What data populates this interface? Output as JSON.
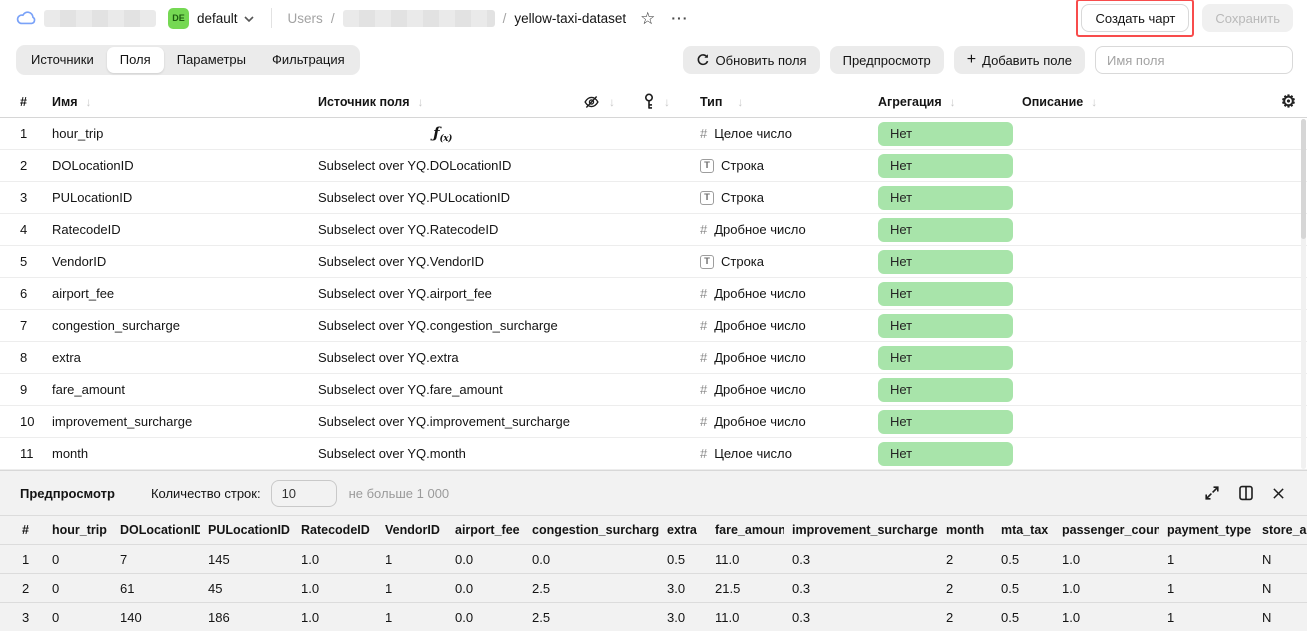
{
  "header": {
    "workspace": {
      "de_badge": "DE",
      "env_label": "default"
    },
    "breadcrumb": {
      "root": "Users",
      "sep1": "/",
      "sep2": "/",
      "dataset": "yellow-taxi-dataset"
    },
    "actions": {
      "create_chart": "Создать чарт",
      "save": "Сохранить"
    }
  },
  "toolbar": {
    "tabs": [
      {
        "label": "Источники",
        "active": false
      },
      {
        "label": "Поля",
        "active": true
      },
      {
        "label": "Параметры",
        "active": false
      },
      {
        "label": "Фильтрация",
        "active": false
      }
    ],
    "refresh_fields": "Обновить поля",
    "preview_toggle": "Предпросмотр",
    "add_field": "Добавить поле",
    "field_name_placeholder": "Имя поля"
  },
  "icons": {
    "plus": "+",
    "gear": "⚙",
    "star": "☆",
    "dots": "···",
    "sort_arrow": "↓",
    "number_type": "#",
    "string_type": "Т"
  },
  "colors": {
    "aggregation_badge_green": "#a8e4aa",
    "annotation_red": "#f84c4c",
    "de_badge_green": "#75d853",
    "cloud_blue": "#7aa2f8"
  },
  "fields_table": {
    "columns": {
      "num": "#",
      "name": "Имя",
      "source": "Источник поля",
      "type": "Тип",
      "aggregation": "Агрегация",
      "description": "Описание"
    },
    "rows": [
      {
        "num": "1",
        "name": "hour_trip",
        "source": "",
        "formula": true,
        "type_kind": "number",
        "type": "Целое число",
        "aggregation": "Нет",
        "description": ""
      },
      {
        "num": "2",
        "name": "DOLocationID",
        "source": "Subselect over YQ.DOLocationID",
        "formula": false,
        "type_kind": "string",
        "type": "Строка",
        "aggregation": "Нет",
        "description": ""
      },
      {
        "num": "3",
        "name": "PULocationID",
        "source": "Subselect over YQ.PULocationID",
        "formula": false,
        "type_kind": "string",
        "type": "Строка",
        "aggregation": "Нет",
        "description": ""
      },
      {
        "num": "4",
        "name": "RatecodeID",
        "source": "Subselect over YQ.RatecodeID",
        "formula": false,
        "type_kind": "number",
        "type": "Дробное число",
        "aggregation": "Нет",
        "description": ""
      },
      {
        "num": "5",
        "name": "VendorID",
        "source": "Subselect over YQ.VendorID",
        "formula": false,
        "type_kind": "string",
        "type": "Строка",
        "aggregation": "Нет",
        "description": ""
      },
      {
        "num": "6",
        "name": "airport_fee",
        "source": "Subselect over YQ.airport_fee",
        "formula": false,
        "type_kind": "number",
        "type": "Дробное число",
        "aggregation": "Нет",
        "description": ""
      },
      {
        "num": "7",
        "name": "congestion_surcharge",
        "source": "Subselect over YQ.congestion_surcharge",
        "formula": false,
        "type_kind": "number",
        "type": "Дробное число",
        "aggregation": "Нет",
        "description": ""
      },
      {
        "num": "8",
        "name": "extra",
        "source": "Subselect over YQ.extra",
        "formula": false,
        "type_kind": "number",
        "type": "Дробное число",
        "aggregation": "Нет",
        "description": ""
      },
      {
        "num": "9",
        "name": "fare_amount",
        "source": "Subselect over YQ.fare_amount",
        "formula": false,
        "type_kind": "number",
        "type": "Дробное число",
        "aggregation": "Нет",
        "description": ""
      },
      {
        "num": "10",
        "name": "improvement_surcharge",
        "source": "Subselect over YQ.improvement_surcharge",
        "formula": false,
        "type_kind": "number",
        "type": "Дробное число",
        "aggregation": "Нет",
        "description": ""
      },
      {
        "num": "11",
        "name": "month",
        "source": "Subselect over YQ.month",
        "formula": false,
        "type_kind": "number",
        "type": "Целое число",
        "aggregation": "Нет",
        "description": ""
      }
    ]
  },
  "preview_panel": {
    "title": "Предпросмотр",
    "row_count_label": "Количество строк:",
    "row_count_value": "10",
    "row_count_hint": "не больше 1 000",
    "table": {
      "headers": [
        "#",
        "hour_trip",
        "DOLocationID",
        "PULocationID",
        "RatecodeID",
        "VendorID",
        "airport_fee",
        "congestion_surcharge",
        "extra",
        "fare_amount",
        "improvement_surcharge",
        "month",
        "mta_tax",
        "passenger_count",
        "payment_type",
        "store_and_fwd_flag"
      ],
      "rows": [
        [
          "1",
          "0",
          "7",
          "145",
          "1.0",
          "1",
          "0.0",
          "0.0",
          "0.5",
          "11.0",
          "0.3",
          "2",
          "0.5",
          "1.0",
          "1",
          "N"
        ],
        [
          "2",
          "0",
          "61",
          "45",
          "1.0",
          "1",
          "0.0",
          "2.5",
          "3.0",
          "21.5",
          "0.3",
          "2",
          "0.5",
          "1.0",
          "1",
          "N"
        ],
        [
          "3",
          "0",
          "140",
          "186",
          "1.0",
          "1",
          "0.0",
          "2.5",
          "3.0",
          "11.0",
          "0.3",
          "2",
          "0.5",
          "1.0",
          "1",
          "N"
        ]
      ]
    }
  }
}
